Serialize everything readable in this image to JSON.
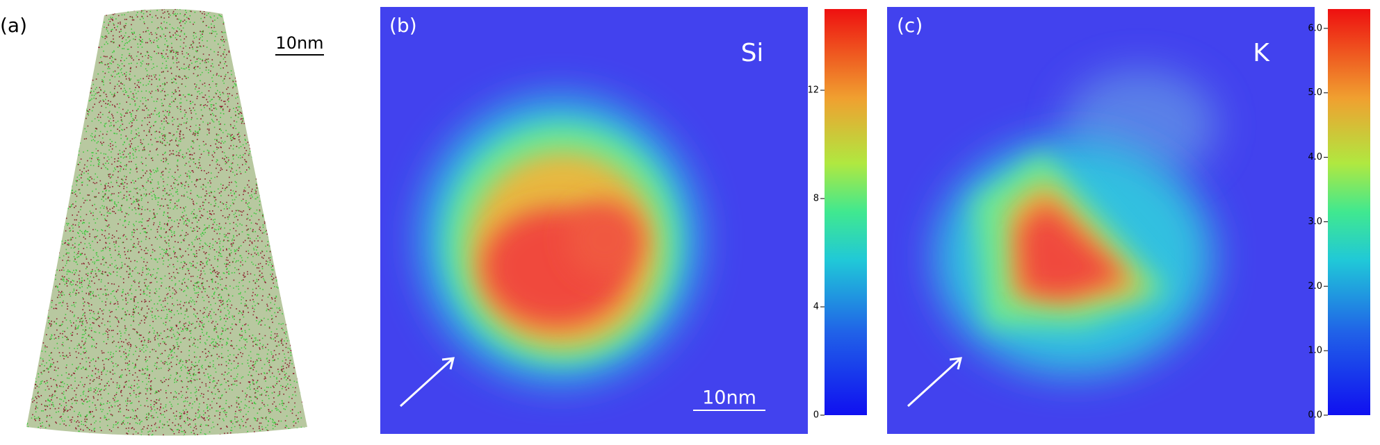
{
  "panels": [
    {
      "label": "(a)",
      "scale_bar": "10nm"
    },
    {
      "label": "(b)",
      "element": "Si",
      "scale_bar": "10nm",
      "colorbar": {
        "ylim": [
          0,
          15
        ],
        "yticks": [
          0,
          4,
          8,
          12
        ]
      }
    },
    {
      "label": "(c)",
      "element": "K",
      "colorbar": {
        "ylim": [
          0,
          6.3
        ],
        "yticks": [
          {
            "value": 0,
            "label": "0.0"
          },
          {
            "value": 1,
            "label": "1.0"
          },
          {
            "value": 2,
            "label": "2.0"
          },
          {
            "value": 3,
            "label": "3.0"
          },
          {
            "value": 4,
            "label": "4.0"
          },
          {
            "value": 5,
            "label": "5.0"
          },
          {
            "value": 6,
            "label": "6.0"
          }
        ]
      }
    }
  ]
}
